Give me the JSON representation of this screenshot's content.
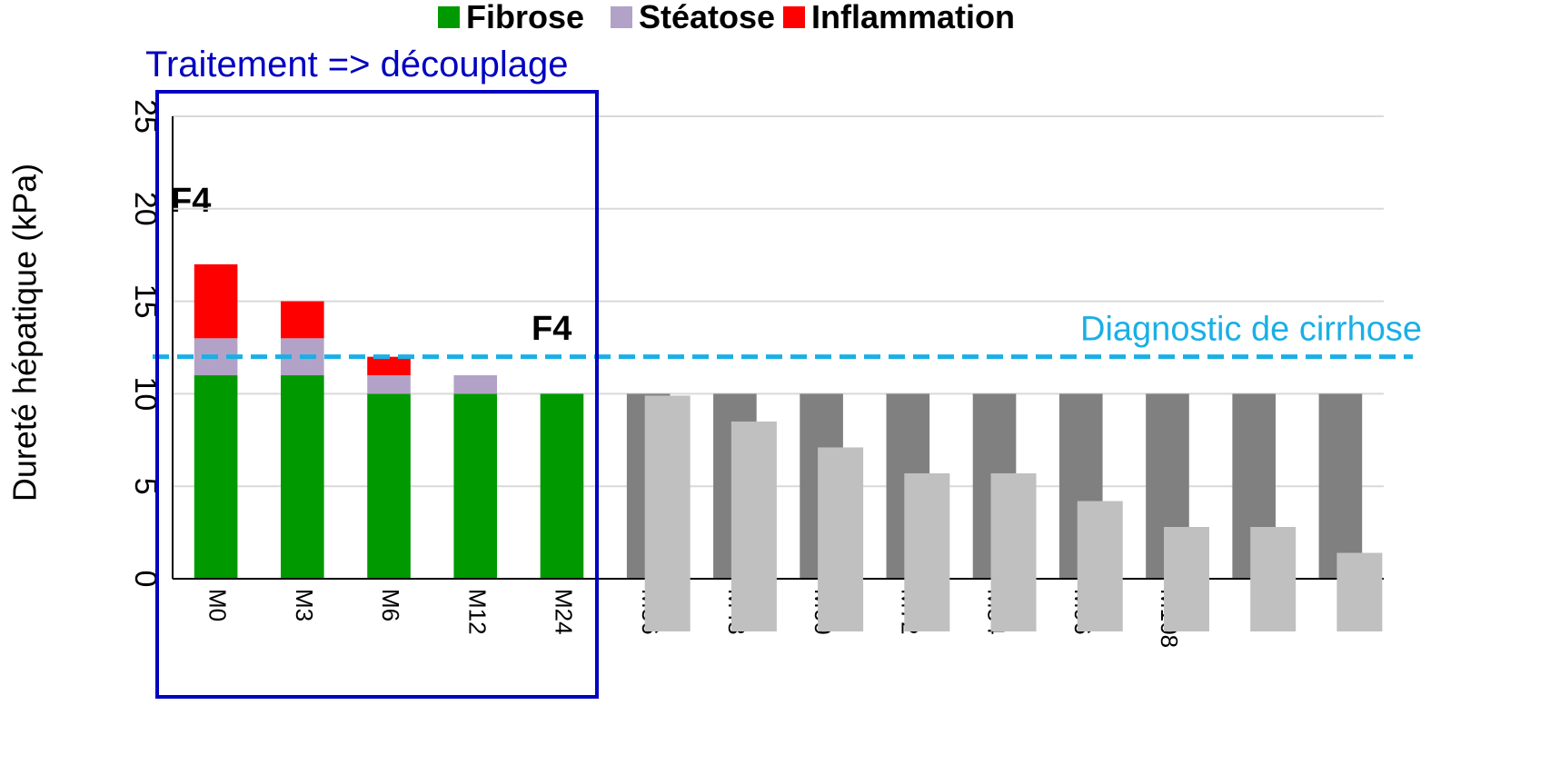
{
  "chart_data": {
    "type": "stacked_bar",
    "y_label": "Dureté hépatique (kPa)",
    "categories": [
      "M0",
      "M3",
      "M6",
      "M12",
      "M24",
      "M36",
      "M48",
      "M60",
      "M72",
      "M84",
      "M96",
      "M108",
      null,
      null
    ],
    "series": [
      {
        "name": "Fibrose",
        "color": "#009900",
        "colors": [
          "#009900",
          "#009900",
          "#009900",
          "#009900",
          "#009900",
          "#808080",
          "#808080",
          "#808080",
          "#808080",
          "#808080",
          "#808080",
          "#808080",
          "#808080",
          "#808080"
        ],
        "values": [
          11,
          11,
          10,
          10,
          10,
          10,
          10,
          10,
          10,
          10,
          10,
          10,
          10,
          10
        ]
      },
      {
        "name": "Stéatose",
        "color": "#b3a2c7",
        "values": [
          2,
          2,
          1,
          1,
          0,
          null,
          null,
          null,
          null,
          null,
          null,
          null,
          null,
          null
        ]
      },
      {
        "name": "Inflammation",
        "color": "#ff0000",
        "values": [
          4,
          2,
          1,
          0,
          0,
          null,
          null,
          null,
          null,
          null,
          null,
          null,
          null,
          null
        ]
      }
    ],
    "overlay": {
      "color": "#c0c0c0",
      "values": [
        null,
        null,
        null,
        null,
        null,
        9.9,
        8.5,
        7.1,
        5.7,
        5.7,
        4.2,
        2.8,
        2.8,
        1.4
      ]
    },
    "reference_line": {
      "value": 12,
      "label": "Diagnostic de cirrhose",
      "color": "#1aafe6"
    },
    "annotations": [
      "F4",
      "F4"
    ],
    "box_title": "Traitement => découplage",
    "box_color": "#0000c0",
    "ylim": [
      0,
      25
    ],
    "yticks": [
      0,
      5,
      10,
      15,
      20,
      25
    ],
    "grid": true
  }
}
